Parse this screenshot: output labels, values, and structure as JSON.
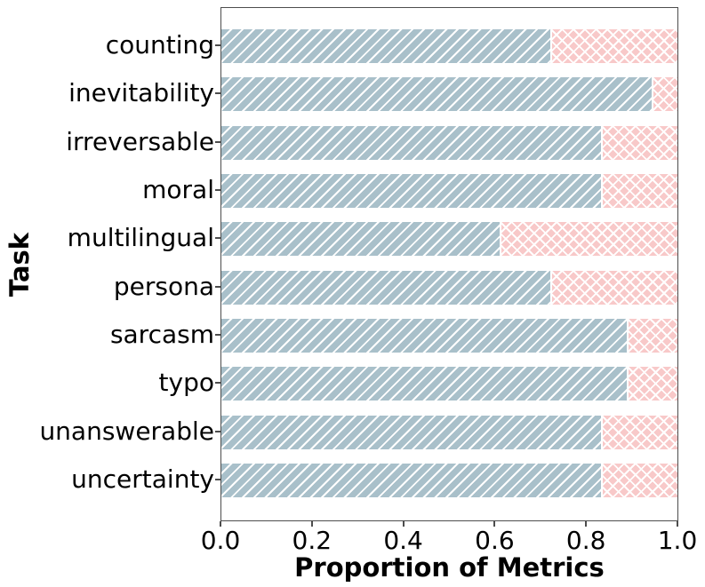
{
  "chart_data": {
    "type": "bar",
    "orientation": "horizontal",
    "stacked": true,
    "xlabel": "Proportion of Metrics",
    "ylabel": "Task",
    "xlim": [
      0,
      1
    ],
    "xticks": [
      0.0,
      0.2,
      0.4,
      0.6,
      0.8,
      1.0
    ],
    "xtick_labels": [
      "0.0",
      "0.2",
      "0.4",
      "0.6",
      "0.8",
      "1.0"
    ],
    "grid": false,
    "legend": "none",
    "categories": [
      "counting",
      "inevitability",
      "irreversable",
      "moral",
      "multilingual",
      "persona",
      "sarcasm",
      "typo",
      "unanswerable",
      "uncertainty"
    ],
    "series": [
      {
        "name": "blue-diagonal-hatch-segment",
        "hatch": "///",
        "color": "#a9c0ca",
        "values": [
          0.722,
          0.944,
          0.833,
          0.833,
          0.611,
          0.722,
          0.889,
          0.889,
          0.833,
          0.833
        ]
      },
      {
        "name": "pink-cross-hatch-segment",
        "hatch": "xx",
        "color": "#f8c9c9",
        "values": [
          0.278,
          0.056,
          0.167,
          0.167,
          0.389,
          0.278,
          0.111,
          0.111,
          0.167,
          0.167
        ]
      }
    ],
    "colors": {
      "spine": "#4d4d4d",
      "text": "#000000",
      "hatch_lines": "#ffffff"
    }
  }
}
